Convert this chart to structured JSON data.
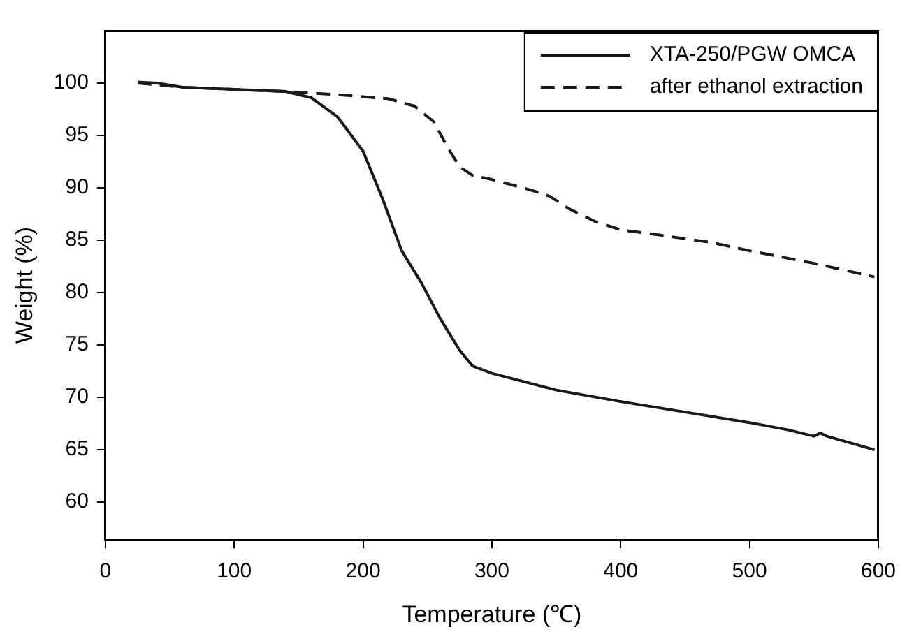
{
  "chart_data": {
    "type": "line",
    "xlabel": "Temperature (℃)",
    "ylabel": "Weight (%)",
    "xlim": [
      0,
      600
    ],
    "xticks": [
      0,
      100,
      200,
      300,
      400,
      500,
      600
    ],
    "ylim": [
      56.4,
      105
    ],
    "yticks": [
      60,
      65,
      70,
      75,
      80,
      85,
      90,
      95,
      100
    ],
    "grid": false,
    "legend": "top right",
    "marker": "none",
    "series": [
      {
        "name": "XTA-250/PGW OMCA",
        "color": "#1a1a1a",
        "line_style": "solid",
        "x": [
          25,
          40,
          60,
          100,
          140,
          160,
          180,
          200,
          215,
          230,
          245,
          260,
          275,
          285,
          300,
          350,
          400,
          450,
          500,
          530,
          550,
          555,
          560,
          597
        ],
        "values": [
          100.1,
          100,
          99.6,
          99.4,
          99.2,
          98.6,
          96.8,
          93.5,
          89,
          84,
          81,
          77.5,
          74.5,
          73,
          72.3,
          70.7,
          69.6,
          68.6,
          67.6,
          66.9,
          66.3,
          66.6,
          66.3,
          65
        ]
      },
      {
        "name": "after ethanol extraction",
        "color": "#1a1a1a",
        "line_style": "dashed",
        "x": [
          25,
          60,
          100,
          140,
          180,
          220,
          240,
          255,
          265,
          275,
          285,
          300,
          330,
          345,
          360,
          380,
          400,
          430,
          470,
          500,
          550,
          597
        ],
        "values": [
          100,
          99.6,
          99.4,
          99.2,
          98.9,
          98.5,
          97.8,
          96.3,
          94,
          92,
          91.2,
          90.8,
          89.8,
          89.2,
          88,
          86.8,
          86,
          85.5,
          84.8,
          84,
          82.8,
          81.5
        ]
      }
    ]
  }
}
